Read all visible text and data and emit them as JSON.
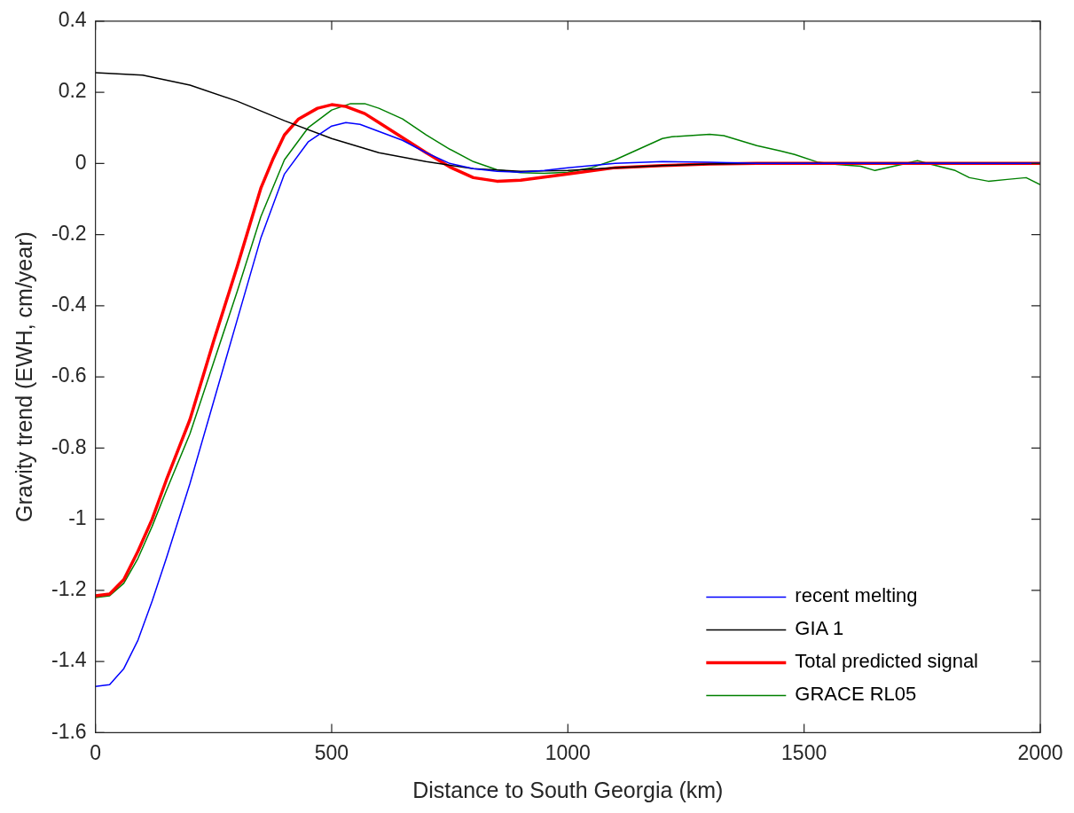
{
  "chart_data": {
    "type": "line",
    "xlabel": "Distance to South Georgia (km)",
    "ylabel": "Gravity trend (EWH, cm/year)",
    "xlim": [
      0,
      2000
    ],
    "xticks": [
      0,
      500,
      1000,
      1500,
      2000
    ],
    "ylim": [
      -1.6,
      0.4
    ],
    "yticks": [
      -1.6,
      -1.4,
      -1.2,
      -1,
      -0.8,
      -0.6,
      -0.4,
      -0.2,
      0,
      0.2,
      0.4
    ],
    "grid": false,
    "legend": "bottom right",
    "marker": "none",
    "line_style": "solid",
    "series": [
      {
        "name": "recent melting",
        "color": "#0000ff",
        "x": [
          0,
          30,
          60,
          90,
          120,
          150,
          200,
          250,
          300,
          350,
          400,
          450,
          500,
          530,
          560,
          600,
          650,
          700,
          750,
          800,
          850,
          900,
          950,
          1000,
          1100,
          1200,
          1300,
          1400,
          2000
        ],
        "values": [
          -1.47,
          -1.465,
          -1.42,
          -1.34,
          -1.23,
          -1.11,
          -0.9,
          -0.67,
          -0.44,
          -0.21,
          -0.03,
          0.06,
          0.105,
          0.115,
          0.11,
          0.09,
          0.065,
          0.03,
          0,
          -0.015,
          -0.022,
          -0.025,
          -0.02,
          -0.012,
          0,
          0.005,
          0.003,
          0,
          0
        ]
      },
      {
        "name": "GIA 1",
        "color": "#000000",
        "x": [
          0,
          100,
          200,
          300,
          400,
          500,
          600,
          700,
          800,
          900,
          1000,
          1100,
          1200,
          1300,
          1400,
          2000
        ],
        "values": [
          0.255,
          0.248,
          0.22,
          0.175,
          0.12,
          0.07,
          0.03,
          0.005,
          -0.015,
          -0.022,
          -0.02,
          -0.012,
          -0.006,
          -0.002,
          0,
          0
        ]
      },
      {
        "name": "Total predicted signal",
        "color": "#ff0000",
        "x": [
          0,
          30,
          60,
          90,
          120,
          150,
          200,
          250,
          300,
          350,
          375,
          400,
          430,
          470,
          500,
          530,
          570,
          600,
          700,
          750,
          800,
          850,
          900,
          1000,
          1100,
          1200,
          1300,
          1400,
          2000
        ],
        "values": [
          -1.215,
          -1.21,
          -1.17,
          -1.09,
          -1,
          -0.89,
          -0.72,
          -0.5,
          -0.29,
          -0.07,
          0.01,
          0.08,
          0.125,
          0.155,
          0.165,
          0.16,
          0.14,
          0.115,
          0.03,
          -0.01,
          -0.04,
          -0.05,
          -0.047,
          -0.03,
          -0.012,
          -0.006,
          -0.002,
          0,
          0
        ]
      },
      {
        "name": "GRACE RL05",
        "color": "#008000",
        "x": [
          0,
          30,
          60,
          90,
          120,
          150,
          200,
          250,
          300,
          350,
          400,
          450,
          500,
          540,
          570,
          600,
          650,
          700,
          750,
          800,
          850,
          900,
          950,
          1000,
          1050,
          1100,
          1150,
          1200,
          1220,
          1300,
          1330,
          1400,
          1450,
          1480,
          1530,
          1570,
          1620,
          1650,
          1700,
          1740,
          1770,
          1820,
          1850,
          1890,
          1930,
          1970,
          2000
        ],
        "values": [
          -1.22,
          -1.215,
          -1.18,
          -1.11,
          -1.02,
          -0.92,
          -0.76,
          -0.56,
          -0.36,
          -0.15,
          0.01,
          0.1,
          0.15,
          0.168,
          0.168,
          0.155,
          0.125,
          0.08,
          0.04,
          0.005,
          -0.018,
          -0.026,
          -0.028,
          -0.025,
          -0.012,
          0.01,
          0.04,
          0.07,
          0.075,
          0.082,
          0.078,
          0.05,
          0.035,
          0.025,
          0.003,
          -0.003,
          -0.008,
          -0.02,
          -0.005,
          0.008,
          -0.003,
          -0.02,
          -0.04,
          -0.05,
          -0.045,
          -0.04,
          -0.06
        ]
      }
    ]
  }
}
